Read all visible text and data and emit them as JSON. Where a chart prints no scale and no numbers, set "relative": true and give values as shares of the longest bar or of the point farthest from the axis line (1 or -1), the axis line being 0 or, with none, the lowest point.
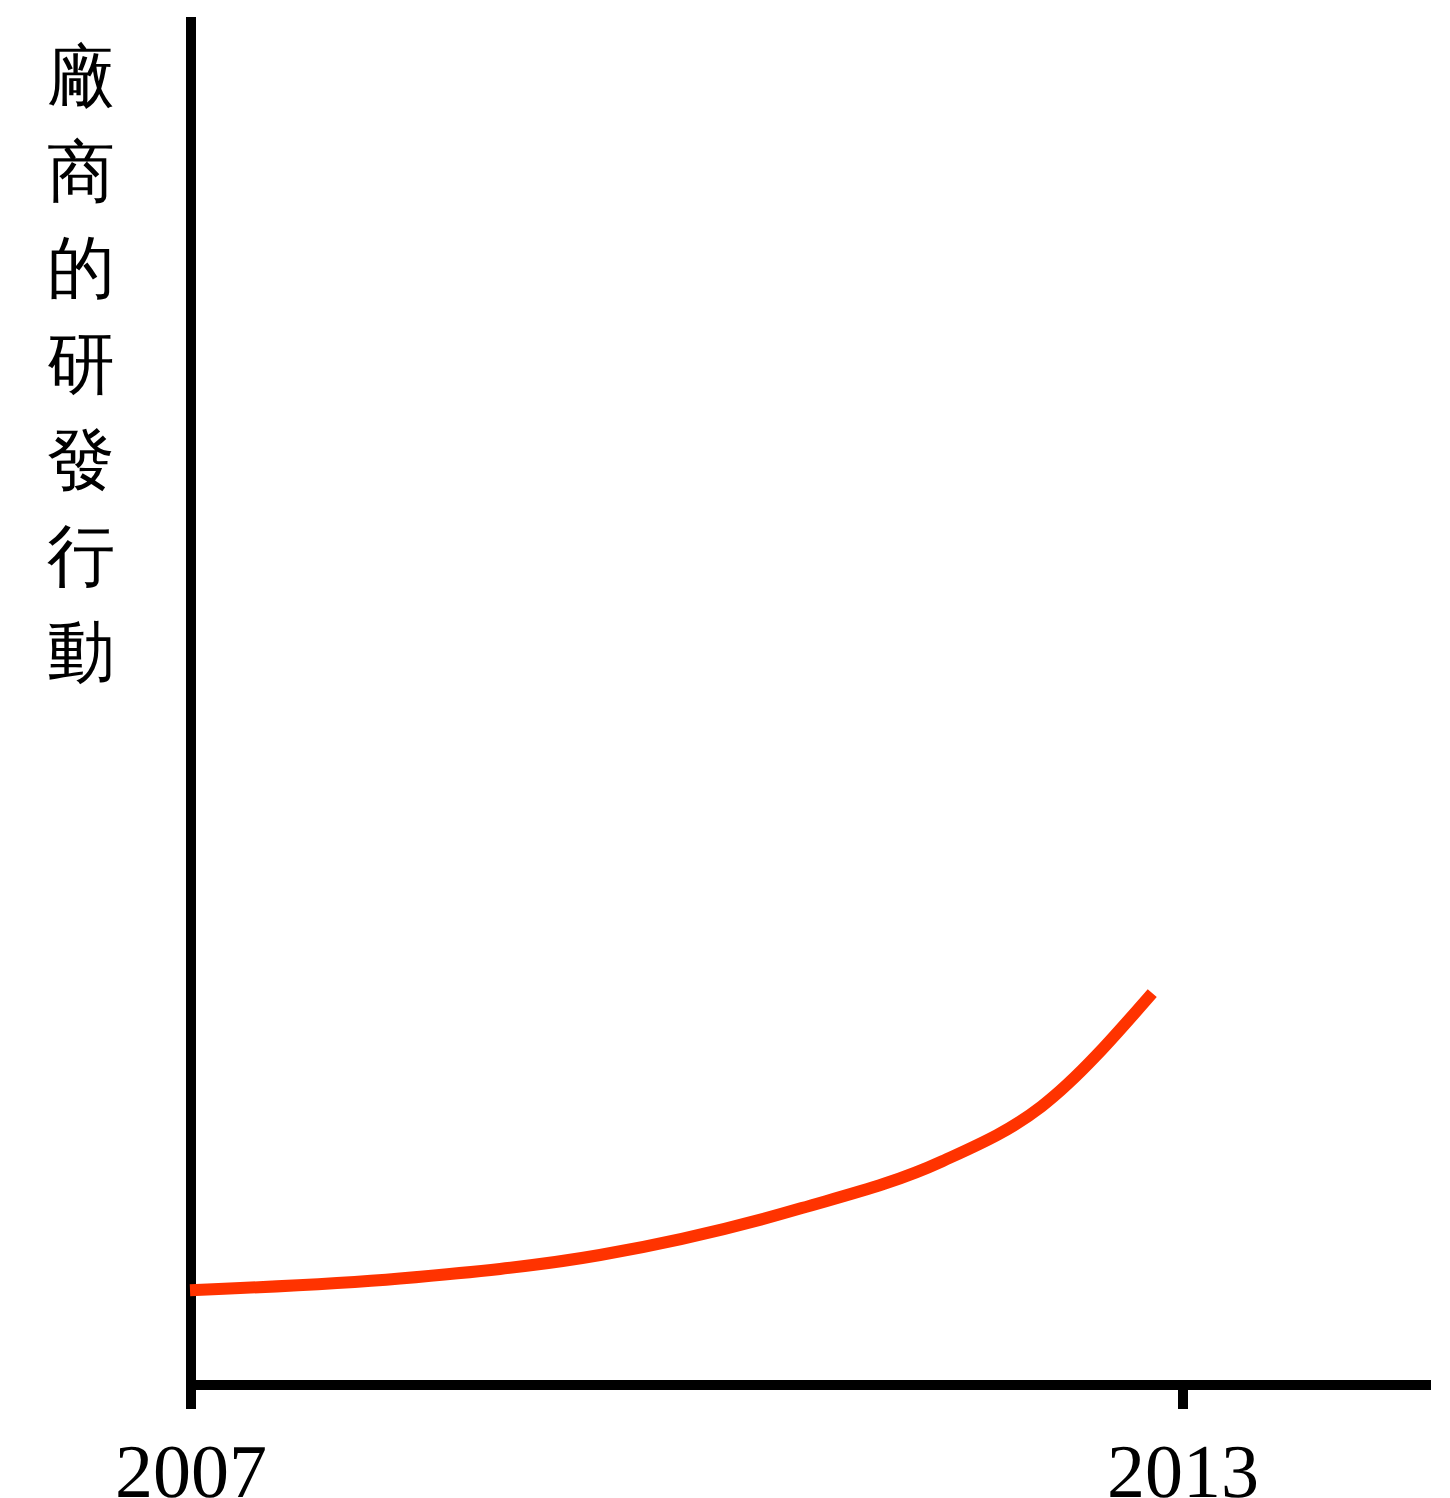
{
  "chart_data": {
    "type": "line",
    "ylabel": "廠商的研發行動",
    "relative": true,
    "x": [
      2007,
      2008.27,
      2009.48,
      2010.7,
      2011.55,
      2012.15,
      2012.82
    ],
    "series": [
      {
        "color": "#ff3300",
        "values": [
          0.24,
          0.27,
          0.33,
          0.45,
          0.57,
          0.71,
          1
        ]
      }
    ],
    "xlim": [
      2007,
      2014.5
    ],
    "xticks": [
      2007,
      2013
    ]
  }
}
